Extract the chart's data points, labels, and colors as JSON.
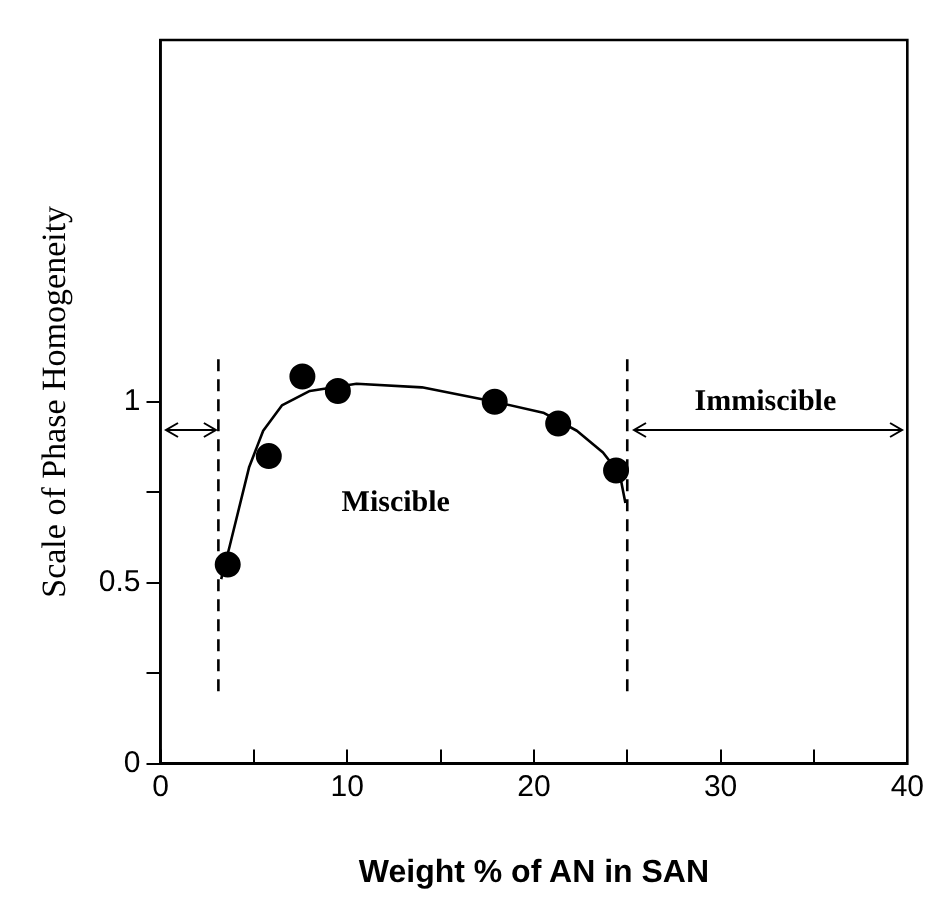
{
  "chart_data": {
    "type": "scatter",
    "xlabel": "Weight % of AN in SAN",
    "ylabel": "Scale of Phase Homogeneity",
    "series": [
      {
        "color": "#000000",
        "marker": "circle",
        "x": [
          3.6,
          5.8,
          7.6,
          9.5,
          17.9,
          21.3,
          24.4
        ],
        "values": [
          0.55,
          0.85,
          1.07,
          1.03,
          1.0,
          0.94,
          0.81
        ]
      },
      {
        "type": "line",
        "color": "#000000",
        "marker": "none",
        "line_style": "solid",
        "x": [
          3.25,
          3.7,
          4.75,
          5.5,
          6.5,
          8.0,
          10.5,
          14,
          17.9,
          20.5,
          22.3,
          23.7,
          24.6,
          24.9
        ],
        "values": [
          0.51,
          0.6,
          0.82,
          0.92,
          0.99,
          1.03,
          1.05,
          1.04,
          1.0,
          0.97,
          0.92,
          0.86,
          0.8,
          0.72
        ]
      },
      {
        "type": "line",
        "color": "#000000",
        "marker": "none",
        "line_style": "dashed",
        "x": [
          3.1,
          3.1
        ],
        "values": [
          0.2,
          1.13
        ]
      },
      {
        "type": "line",
        "color": "#000000",
        "marker": "none",
        "line_style": "dashed",
        "x": [
          25,
          25
        ],
        "values": [
          0.2,
          1.13
        ]
      }
    ],
    "xlim": [
      0,
      40
    ],
    "xticks": [
      0,
      {
        "value": 5,
        "label": null
      },
      10,
      {
        "value": 15,
        "label": null
      },
      20,
      {
        "value": 25,
        "label": null
      },
      30,
      {
        "value": 35,
        "label": null
      },
      40
    ],
    "ylim": [
      0,
      2
    ],
    "yticks": [
      0,
      {
        "value": 0.25,
        "label": null
      },
      0.5,
      {
        "value": 0.75,
        "label": null
      },
      1
    ],
    "annotations": [
      "Miscible",
      "Immiscible"
    ],
    "grid": false,
    "legend": false
  }
}
